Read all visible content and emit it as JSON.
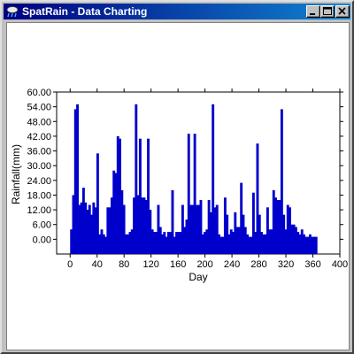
{
  "window": {
    "title": "SpatRain - Data Charting"
  },
  "colors": {
    "titlebar": "#000080",
    "bars": "#0000cc",
    "background": "#ffffff"
  },
  "icons": {
    "app": "cloud-rain-icon",
    "minimize": "minimize-icon",
    "maximize": "maximize-icon",
    "close": "close-icon"
  },
  "chart_data": {
    "type": "bar",
    "title": "",
    "xlabel": "Day",
    "ylabel": "Rainfall(mm)",
    "xlim": [
      -20,
      400
    ],
    "ylim": [
      -6,
      60
    ],
    "x_ticks": [
      0,
      40,
      80,
      120,
      160,
      200,
      240,
      280,
      320,
      360,
      400
    ],
    "y_ticks": [
      0,
      6,
      12,
      18,
      24,
      30,
      36,
      42,
      48,
      54,
      60
    ],
    "x_tick_labels": [
      "0",
      "40",
      "80",
      "120",
      "160",
      "200",
      "240",
      "280",
      "320",
      "360",
      "400"
    ],
    "y_tick_labels": [
      "0.00",
      "6.00",
      "12.00",
      "18.00",
      "24.00",
      "30.00",
      "36.00",
      "42.00",
      "48.00",
      "54.00",
      "60.00"
    ],
    "grid": false,
    "series": [
      {
        "name": "",
        "x": [
          0,
          3,
          6,
          9,
          12,
          15,
          18,
          21,
          24,
          27,
          30,
          33,
          36,
          39,
          42,
          45,
          48,
          51,
          54,
          57,
          60,
          63,
          66,
          69,
          72,
          75,
          78,
          81,
          84,
          87,
          90,
          93,
          96,
          99,
          102,
          105,
          108,
          111,
          114,
          117,
          120,
          123,
          126,
          129,
          132,
          135,
          138,
          141,
          144,
          147,
          150,
          153,
          156,
          159,
          162,
          165,
          168,
          171,
          174,
          177,
          180,
          183,
          186,
          189,
          192,
          195,
          198,
          201,
          204,
          207,
          210,
          213,
          216,
          219,
          222,
          225,
          228,
          231,
          234,
          237,
          240,
          243,
          246,
          249,
          252,
          255,
          258,
          261,
          264,
          267,
          270,
          273,
          276,
          279,
          282,
          285,
          288,
          291,
          294,
          297,
          300,
          303,
          306,
          309,
          312,
          315,
          318,
          321,
          324,
          327,
          330,
          333,
          336,
          339,
          342,
          345,
          348,
          351,
          354,
          357,
          360,
          363
        ],
        "values": [
          4,
          18,
          53,
          55,
          14,
          15,
          21,
          15,
          12,
          14,
          10,
          15,
          13,
          35,
          2,
          4,
          2,
          1,
          13,
          13,
          17,
          28,
          27,
          42,
          41,
          20,
          14,
          2,
          2,
          3,
          4,
          17,
          55,
          18,
          41,
          17,
          17,
          16,
          41,
          12,
          4,
          3,
          3,
          14,
          5,
          2,
          3,
          1,
          3,
          3,
          20,
          1,
          3,
          3,
          3,
          14,
          5,
          8,
          43,
          14,
          14,
          43,
          14,
          14,
          16,
          2,
          3,
          4,
          16,
          11,
          55,
          13,
          14,
          2,
          1,
          1,
          17,
          10,
          2,
          4,
          3,
          11,
          5,
          5,
          23,
          10,
          5,
          2,
          1,
          1,
          19,
          3,
          39,
          10,
          3,
          2,
          2,
          13,
          4,
          4,
          20,
          17,
          16,
          16,
          53,
          10,
          4,
          14,
          13,
          6,
          6,
          5,
          3,
          2,
          4,
          2,
          1,
          1,
          2,
          1,
          1,
          1
        ]
      }
    ]
  }
}
